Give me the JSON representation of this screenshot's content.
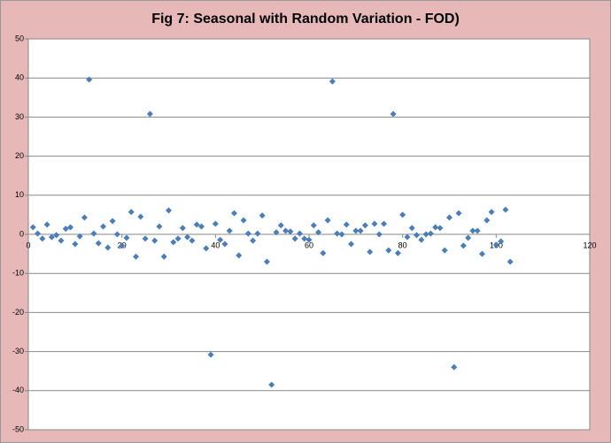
{
  "chart_data": {
    "type": "scatter",
    "title": "Fig 7: Seasonal with Random Variation - FOD)",
    "x": [
      1,
      2,
      3,
      4,
      5,
      6,
      7,
      8,
      9,
      10,
      11,
      12,
      13,
      14,
      15,
      16,
      17,
      18,
      19,
      20,
      21,
      22,
      23,
      24,
      25,
      26,
      27,
      28,
      29,
      30,
      31,
      32,
      33,
      34,
      35,
      36,
      37,
      38,
      39,
      40,
      41,
      42,
      43,
      44,
      45,
      46,
      47,
      48,
      49,
      50,
      51,
      52,
      53,
      54,
      55,
      56,
      57,
      58,
      59,
      60,
      61,
      62,
      63,
      64,
      65,
      66,
      67,
      68,
      69,
      70,
      71,
      72,
      73,
      74,
      75,
      76,
      77,
      78,
      79,
      80,
      81,
      82,
      83,
      84,
      85,
      86,
      87,
      88,
      89,
      90,
      91,
      92,
      93,
      94,
      95,
      96,
      97,
      98,
      99,
      100,
      101,
      102,
      103
    ],
    "series": [
      {
        "color": "#4a7ebb",
        "values": [
          1.8,
          0.2,
          -1.1,
          2.5,
          -0.7,
          -0.2,
          -1.6,
          1.4,
          1.8,
          -2.5,
          -0.5,
          4.3,
          39.6,
          0.2,
          -2.3,
          2.0,
          -3.4,
          3.4,
          0,
          -2.9,
          -0.9,
          5.7,
          -5.7,
          4.5,
          -1.1,
          30.8,
          -1.6,
          2.0,
          -5.7,
          6.1,
          -2.0,
          -1.1,
          1.6,
          -0.7,
          -1.6,
          2.5,
          2.0,
          -3.6,
          -30.8,
          2.7,
          -1.4,
          -2.5,
          0.9,
          5.4,
          -5.4,
          3.6,
          0.2,
          -1.6,
          0.2,
          4.8,
          -7.0,
          -38.5,
          0.5,
          2.3,
          0.9,
          0.7,
          -1.1,
          0.2,
          -1.1,
          -1.4,
          2.3,
          0.5,
          -4.8,
          3.6,
          39.1,
          0.2,
          0,
          2.5,
          -2.5,
          0.9,
          0.9,
          2.3,
          -4.5,
          2.7,
          0,
          2.7,
          -4.1,
          30.8,
          -4.8,
          5.0,
          -0.7,
          1.6,
          -0.2,
          -1.4,
          0,
          0.2,
          1.8,
          1.6,
          -4.1,
          4.3,
          -34.0,
          5.4,
          -2.9,
          -0.9,
          0.9,
          0.9,
          -5.0,
          3.6,
          5.7,
          -2.7,
          -1.8,
          6.3,
          -7.0
        ]
      }
    ],
    "xlim": [
      0,
      120
    ],
    "xticks": [
      0,
      20,
      40,
      60,
      80,
      100,
      120
    ],
    "ylim": [
      -50,
      50
    ],
    "yticks": [
      -50,
      -40,
      -30,
      -20,
      -10,
      0,
      10,
      20,
      30,
      40,
      50
    ],
    "grid": true
  }
}
